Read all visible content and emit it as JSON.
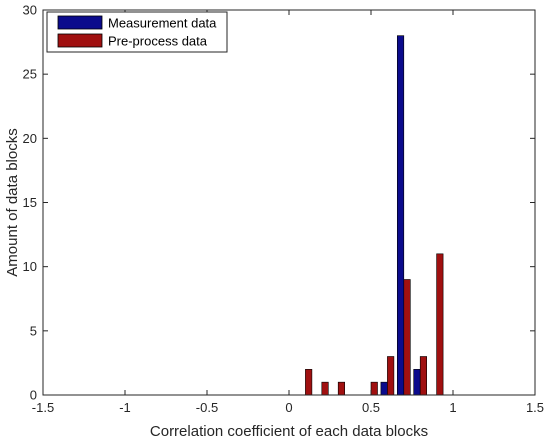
{
  "chart_data": {
    "type": "bar",
    "title": "",
    "xlabel": "Correlation coefficient of each data blocks",
    "ylabel": "Amount of data blocks",
    "xlim": [
      -1.5,
      1.5
    ],
    "ylim": [
      0,
      30
    ],
    "xticks": [
      -1.5,
      -1,
      -0.5,
      0,
      0.5,
      1,
      1.5
    ],
    "xtick_labels": [
      "-1.5",
      "-1",
      "-0.5",
      "0",
      "0.5",
      "1",
      "1.5"
    ],
    "yticks": [
      0,
      5,
      10,
      15,
      20,
      25,
      30
    ],
    "ytick_labels": [
      "0",
      "5",
      "10",
      "15",
      "20",
      "25",
      "30"
    ],
    "grid": false,
    "legend_position": "top-left",
    "bin_centers": [
      0.1,
      0.2,
      0.3,
      0.5,
      0.6,
      0.7,
      0.8,
      0.9
    ],
    "series": [
      {
        "name": "Measurement data",
        "color": "#0b0b8c",
        "values": [
          0,
          0,
          0,
          0,
          1,
          28,
          2,
          0
        ]
      },
      {
        "name": "Pre-process data",
        "color": "#a01010",
        "values": [
          2,
          1,
          1,
          1,
          3,
          9,
          3,
          11
        ]
      }
    ]
  }
}
